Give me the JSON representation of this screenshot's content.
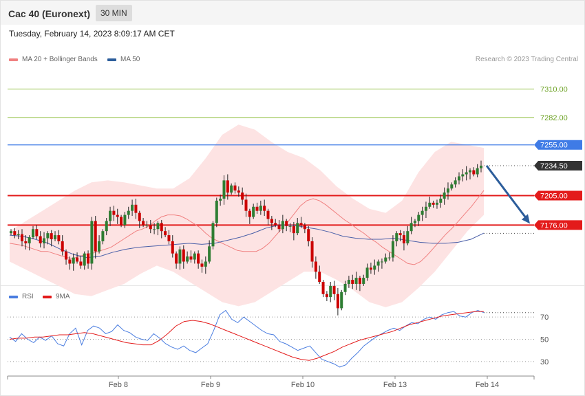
{
  "header": {
    "title": "Cac 40 (Euronext)",
    "timeframe": "30 MIN",
    "datetime": "Tuesday, February 14, 2023 8:09:17 AM CET"
  },
  "legend": {
    "bollinger": "MA 20 + Bollinger Bands",
    "ma50": "MA 50",
    "copyright": "Research © 2023 Trading Central"
  },
  "rsi_legend": {
    "rsi": "RSI",
    "ma": "9MA"
  },
  "colors": {
    "candle_up": "#2e7d32",
    "candle_down": "#cc0000",
    "bollinger_band": "#fde3e3",
    "ma20": "#f08080",
    "ma50": "#4a5fa8",
    "resistance": "#e31b1b",
    "blue_level": "#3f7be6",
    "green_level": "#8fbf3f",
    "last_price": "#333333",
    "rsi": "#4a7de0",
    "rsi_ma": "#e31b1b",
    "arrow": "#2c5d9b"
  },
  "chart_data": [
    {
      "type": "candlestick",
      "title": "Cac 40 (Euronext)",
      "timeframe": "30 MIN",
      "ylim": [
        7120,
        7330
      ],
      "x_ticks": [
        "Feb 8",
        "Feb 9",
        "Feb 10",
        "Feb 13",
        "Feb 14"
      ],
      "last_price": 7234.5,
      "price_levels": [
        {
          "value": 7310.0,
          "label": "7310.00",
          "kind": "green"
        },
        {
          "value": 7282.0,
          "label": "7282.00",
          "kind": "green"
        },
        {
          "value": 7255.0,
          "label": "7255.00",
          "kind": "blue"
        },
        {
          "value": 7234.5,
          "label": "7234.50",
          "kind": "last"
        },
        {
          "value": 7205.0,
          "label": "7205.00",
          "kind": "red"
        },
        {
          "value": 7176.0,
          "label": "7176.00",
          "kind": "red"
        }
      ],
      "closes": [
        7170,
        7166,
        7167,
        7160,
        7158,
        7164,
        7172,
        7165,
        7158,
        7163,
        7168,
        7162,
        7166,
        7160,
        7150,
        7142,
        7138,
        7144,
        7140,
        7136,
        7148,
        7138,
        7180,
        7150,
        7160,
        7170,
        7180,
        7190,
        7186,
        7184,
        7176,
        7186,
        7190,
        7196,
        7188,
        7180,
        7176,
        7176,
        7172,
        7172,
        7178,
        7170,
        7166,
        7160,
        7148,
        7138,
        7152,
        7140,
        7145,
        7142,
        7148,
        7138,
        7135,
        7140,
        7155,
        7178,
        7200,
        7202,
        7220,
        7208,
        7215,
        7210,
        7208,
        7201,
        7190,
        7184,
        7194,
        7190,
        7195,
        7190,
        7182,
        7178,
        7176,
        7172,
        7180,
        7175,
        7175,
        7168,
        7178,
        7176,
        7172,
        7160,
        7140,
        7130,
        7120,
        7108,
        7105,
        7116,
        7108,
        7094,
        7110,
        7118,
        7122,
        7118,
        7124,
        7118,
        7124,
        7134,
        7132,
        7136,
        7140,
        7140,
        7144,
        7144,
        7160,
        7168,
        7166,
        7158,
        7170,
        7178,
        7180,
        7186,
        7190,
        7194,
        7198,
        7196,
        7198,
        7202,
        7208,
        7212,
        7216,
        7220,
        7224,
        7226,
        7228,
        7230,
        7226,
        7232,
        7234.5
      ],
      "ma20": [
        7158,
        7157,
        7156,
        7154,
        7152,
        7150,
        7150,
        7148,
        7146,
        7144,
        7143,
        7145,
        7147,
        7148,
        7150,
        7152,
        7154,
        7158,
        7162,
        7166,
        7170,
        7172,
        7175,
        7180,
        7184,
        7186,
        7186,
        7185,
        7182,
        7178,
        7174,
        7168,
        7163,
        7160,
        7157,
        7154,
        7151,
        7150,
        7150,
        7150,
        7153,
        7158,
        7165,
        7172,
        7179,
        7187,
        7195,
        7200,
        7202,
        7200,
        7196,
        7191,
        7186,
        7181,
        7177,
        7172,
        7168,
        7163,
        7159,
        7154,
        7150,
        7146,
        7142,
        7138,
        7137,
        7140,
        7146,
        7153,
        7160,
        7167,
        7173,
        7180,
        7187,
        7194,
        7202,
        7210
      ],
      "ma50": [
        7166,
        7165,
        7162,
        7158,
        7152,
        7147,
        7144,
        7145,
        7149,
        7152,
        7154,
        7155,
        7156,
        7157,
        7158,
        7157,
        7158,
        7161,
        7164,
        7168,
        7173,
        7176,
        7176,
        7174,
        7172,
        7169,
        7165,
        7163,
        7162,
        7162,
        7163,
        7161,
        7159,
        7158,
        7158,
        7159,
        7162,
        7168
      ],
      "boll_upper": [
        7170,
        7180,
        7190,
        7200,
        7210,
        7218,
        7220,
        7218,
        7215,
        7212,
        7212,
        7222,
        7242,
        7265,
        7275,
        7270,
        7258,
        7248,
        7242,
        7230,
        7214,
        7202,
        7192,
        7188,
        7200,
        7228,
        7248,
        7258,
        7255,
        7252
      ],
      "boll_lower": [
        7140,
        7132,
        7124,
        7116,
        7108,
        7106,
        7112,
        7118,
        7128,
        7136,
        7130,
        7120,
        7110,
        7100,
        7096,
        7100,
        7110,
        7120,
        7130,
        7130,
        7122,
        7112,
        7100,
        7095,
        7100,
        7114,
        7130,
        7150,
        7170,
        7186
      ],
      "ma20_note": "MA 20 + Bollinger Bands",
      "ma50_note": "MA 50",
      "forecast": {
        "from": 7234.5,
        "to": 7176.0
      }
    },
    {
      "type": "line",
      "title": "RSI",
      "series": [
        {
          "name": "RSI",
          "values": [
            52,
            48,
            55,
            50,
            47,
            52,
            49,
            53,
            46,
            44,
            55,
            60,
            45,
            58,
            62,
            60,
            55,
            57,
            63,
            58,
            56,
            52,
            50,
            49,
            55,
            51,
            46,
            43,
            41,
            44,
            40,
            38,
            42,
            46,
            58,
            72,
            76,
            68,
            65,
            70,
            66,
            62,
            58,
            55,
            54,
            48,
            46,
            43,
            40,
            42,
            44,
            38,
            32,
            30,
            28,
            25,
            27,
            33,
            38,
            44,
            48,
            52,
            55,
            58,
            60,
            58,
            62,
            65,
            64,
            68,
            70,
            68,
            72,
            74,
            75,
            71,
            70,
            74,
            76,
            74
          ]
        },
        {
          "name": "9MA",
          "values": [
            50,
            51,
            51,
            52,
            52,
            53,
            54,
            54,
            55,
            56,
            55,
            53,
            51,
            49,
            47,
            46,
            45,
            45,
            49,
            55,
            62,
            66,
            67,
            66,
            64,
            61,
            58,
            55,
            52,
            49,
            46,
            43,
            40,
            37,
            34,
            32,
            31,
            33,
            36,
            39,
            43,
            46,
            49,
            51,
            53,
            55,
            57,
            60,
            63,
            65,
            67,
            69,
            71,
            72,
            73,
            74,
            75,
            75
          ]
        }
      ],
      "ylim": [
        20,
        80
      ],
      "y_ticks": [
        "70",
        "50",
        "30"
      ]
    }
  ]
}
